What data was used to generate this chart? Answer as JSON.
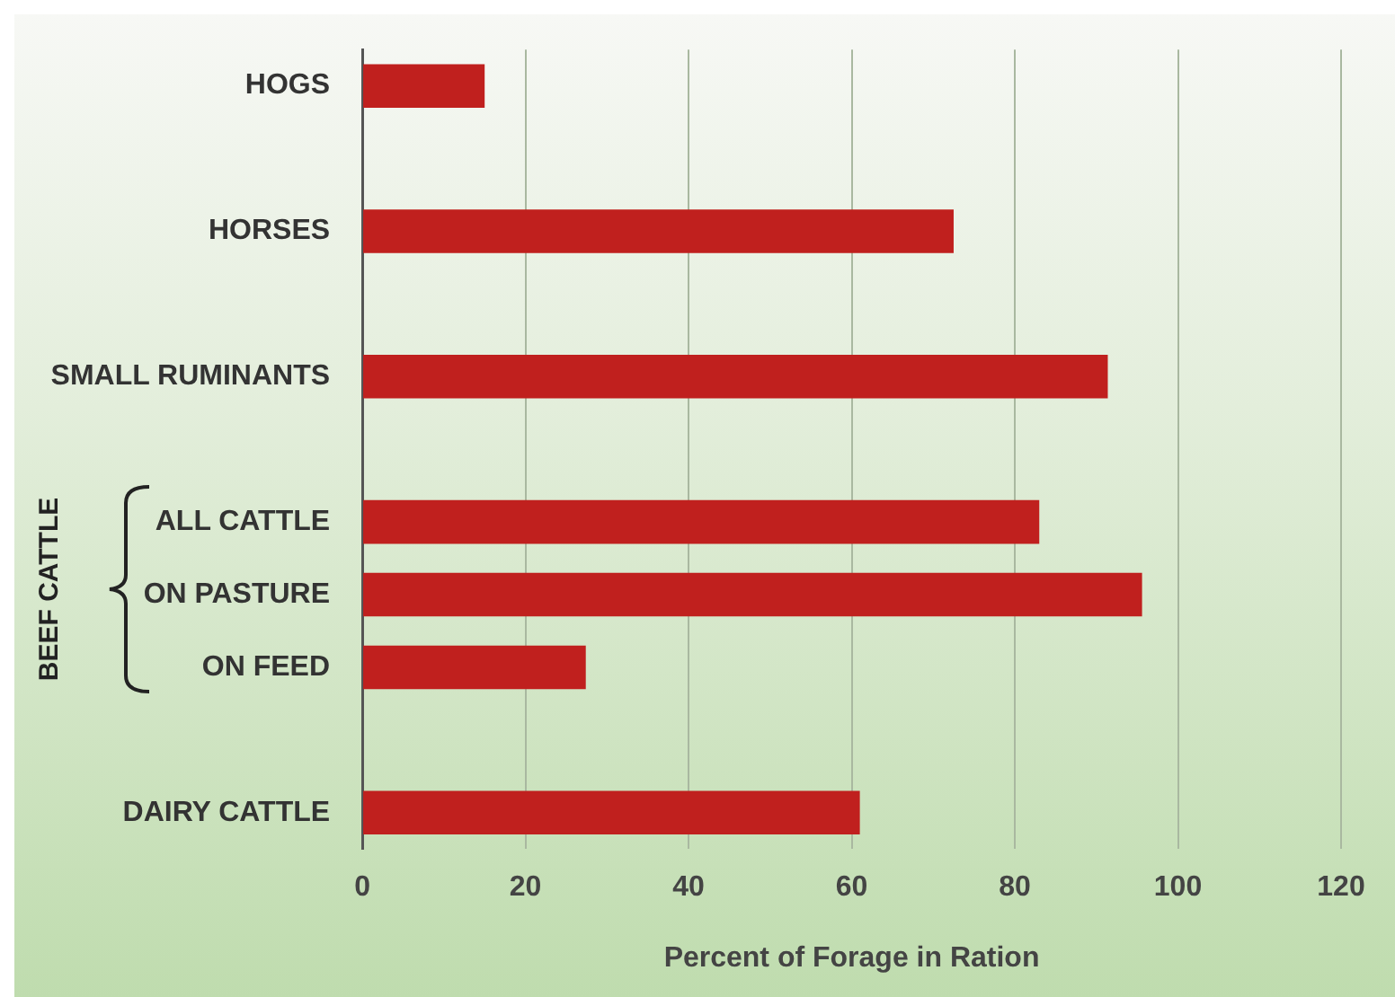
{
  "chart_data": {
    "type": "bar",
    "orientation": "horizontal",
    "xlabel": "Percent of Forage in Ration",
    "categories": [
      "HOGS",
      null,
      "HORSES",
      null,
      "SMALL RUMINANTS",
      null,
      "ALL CATTLE",
      "ON PASTURE",
      "ON FEED",
      null,
      "DAIRY CATTLE"
    ],
    "values": [
      15,
      null,
      72.5,
      null,
      91.4,
      null,
      83,
      95.6,
      27.4,
      null,
      61
    ],
    "color": "#c0201e",
    "xlim": [
      0,
      120
    ],
    "xticks": [
      0,
      20,
      40,
      60,
      80,
      100,
      120
    ],
    "grid": "x",
    "legend": false,
    "annotations": [
      "BEEF CATTLE"
    ]
  }
}
